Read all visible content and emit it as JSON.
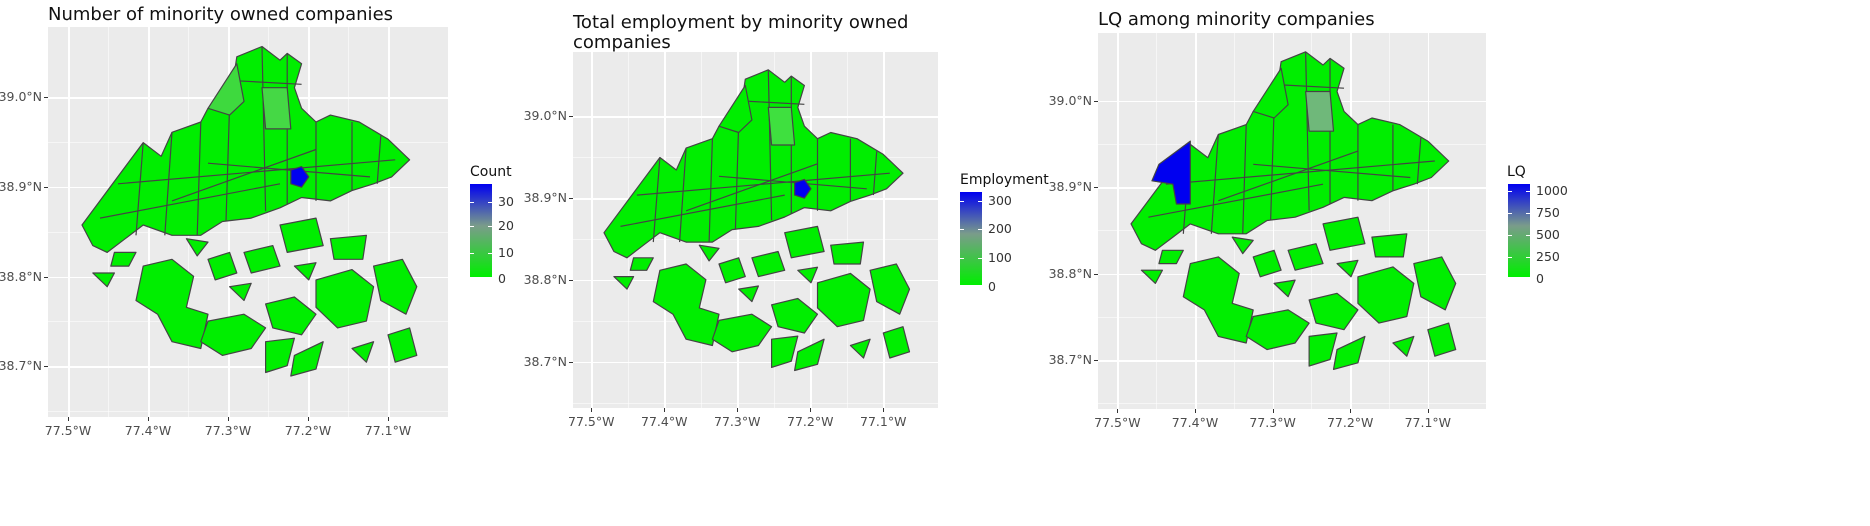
{
  "colors": {
    "low": "#00ee00",
    "mid": "#7a9c8a",
    "high": "#0000f0",
    "panel_bg": "#ebebeb",
    "grid": "#ffffff",
    "border": "#444444"
  },
  "x_ticks": [
    "77.5°W",
    "77.4°W",
    "77.3°W",
    "77.2°W",
    "77.1°W"
  ],
  "y_ticks": [
    "39.0°N",
    "38.9°N",
    "38.8°N",
    "38.7°N"
  ],
  "panels": [
    {
      "id": "count",
      "title": "Number of minority owned companies",
      "legend_title": "Count",
      "legend_labels": [
        "30",
        "20",
        "10",
        "0"
      ],
      "hot_spot": "small-east-tract",
      "tinted": "north-strip"
    },
    {
      "id": "employment",
      "title": "Total employment by minority owned\n companies",
      "legend_title": "Employment",
      "legend_labels": [
        "300",
        "200",
        "100",
        "0"
      ],
      "hot_spot": "small-east-tract",
      "tinted": "north-strip-light"
    },
    {
      "id": "lq",
      "title": "LQ among minority companies",
      "legend_title": "LQ",
      "legend_labels": [
        "1000",
        "750",
        "500",
        "250",
        "0"
      ],
      "hot_spot": "west-wedge",
      "tinted": "north-strip-mid"
    }
  ]
}
